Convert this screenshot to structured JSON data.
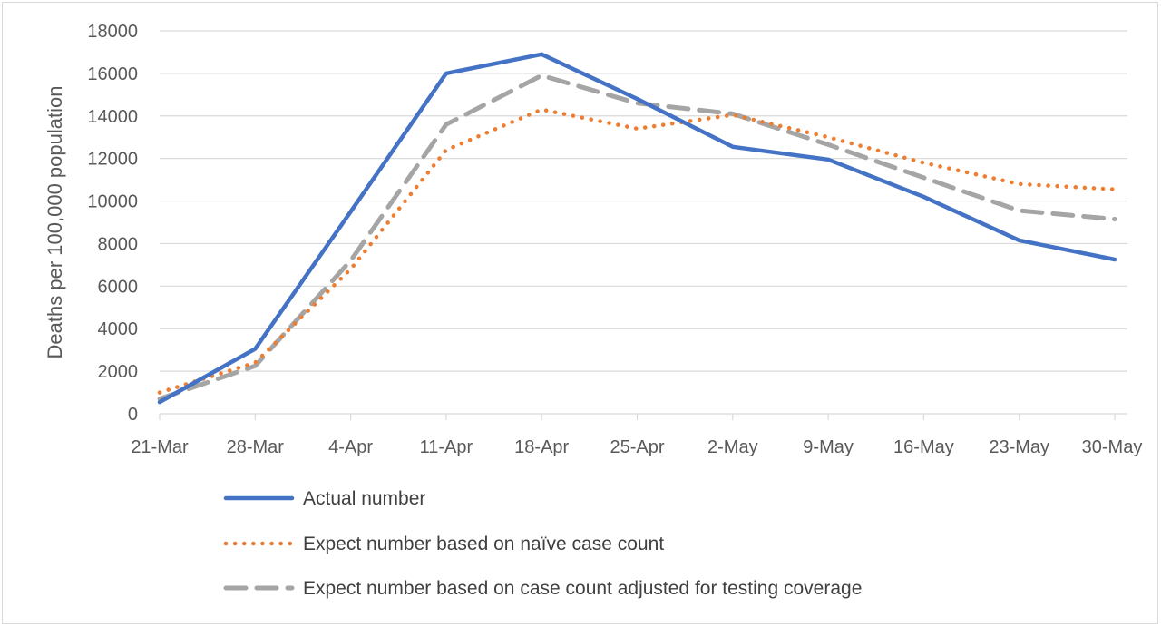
{
  "chart_data": {
    "type": "line",
    "title": "",
    "xlabel": "",
    "ylabel": "Deaths per 100,000 population",
    "ylim": [
      0,
      18000
    ],
    "yticks": [
      0,
      2000,
      4000,
      6000,
      8000,
      10000,
      12000,
      14000,
      16000,
      18000
    ],
    "grid": true,
    "legend": "bottom",
    "categories": [
      "21-Mar",
      "28-Mar",
      "4-Apr",
      "11-Apr",
      "18-Apr",
      "25-Apr",
      "2-May",
      "9-May",
      "16-May",
      "23-May",
      "30-May"
    ],
    "series": [
      {
        "name": "Actual number",
        "color": "#4472C4",
        "style": "solid",
        "values": [
          550,
          3050,
          9500,
          16000,
          16900,
          14800,
          12550,
          11950,
          10200,
          8150,
          7250
        ]
      },
      {
        "name": "Expect number based on naïve case count",
        "color": "#ED7D31",
        "style": "dotted",
        "values": [
          1000,
          2400,
          6800,
          12400,
          14300,
          13400,
          14050,
          13000,
          11800,
          10800,
          10550
        ]
      },
      {
        "name": "Expect number based on case count adjusted for testing coverage",
        "color": "#A5A5A5",
        "style": "dashed",
        "values": [
          700,
          2250,
          7200,
          13600,
          15900,
          14600,
          14100,
          12650,
          11100,
          9550,
          9150
        ]
      }
    ]
  }
}
